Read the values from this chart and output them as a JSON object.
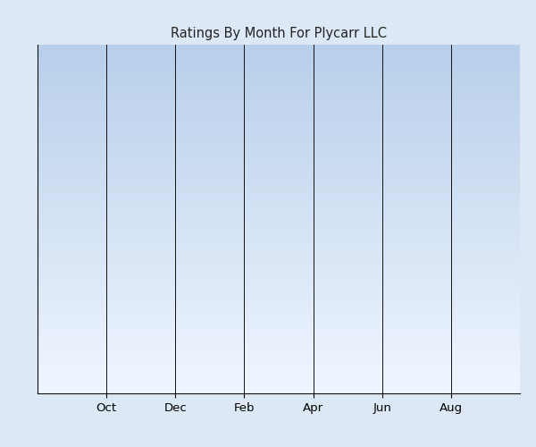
{
  "title": "Ratings By Month For Plycarr LLC",
  "xtick_labels": [
    "Oct",
    "Dec",
    "Feb",
    "Apr",
    "Jun",
    "Aug"
  ],
  "xtick_positions": [
    1,
    2,
    3,
    4,
    5,
    6
  ],
  "xlim": [
    0,
    7
  ],
  "ylim": [
    0,
    1
  ],
  "title_fontsize": 10.5,
  "tick_fontsize": 9.5,
  "grid_color": "#111111",
  "axis_color": "#111111",
  "outer_bg": "#dce8f5",
  "grad_top": "#b8cfea",
  "grad_bottom": "#f0f6ff",
  "border_color": "#c8d8e8"
}
